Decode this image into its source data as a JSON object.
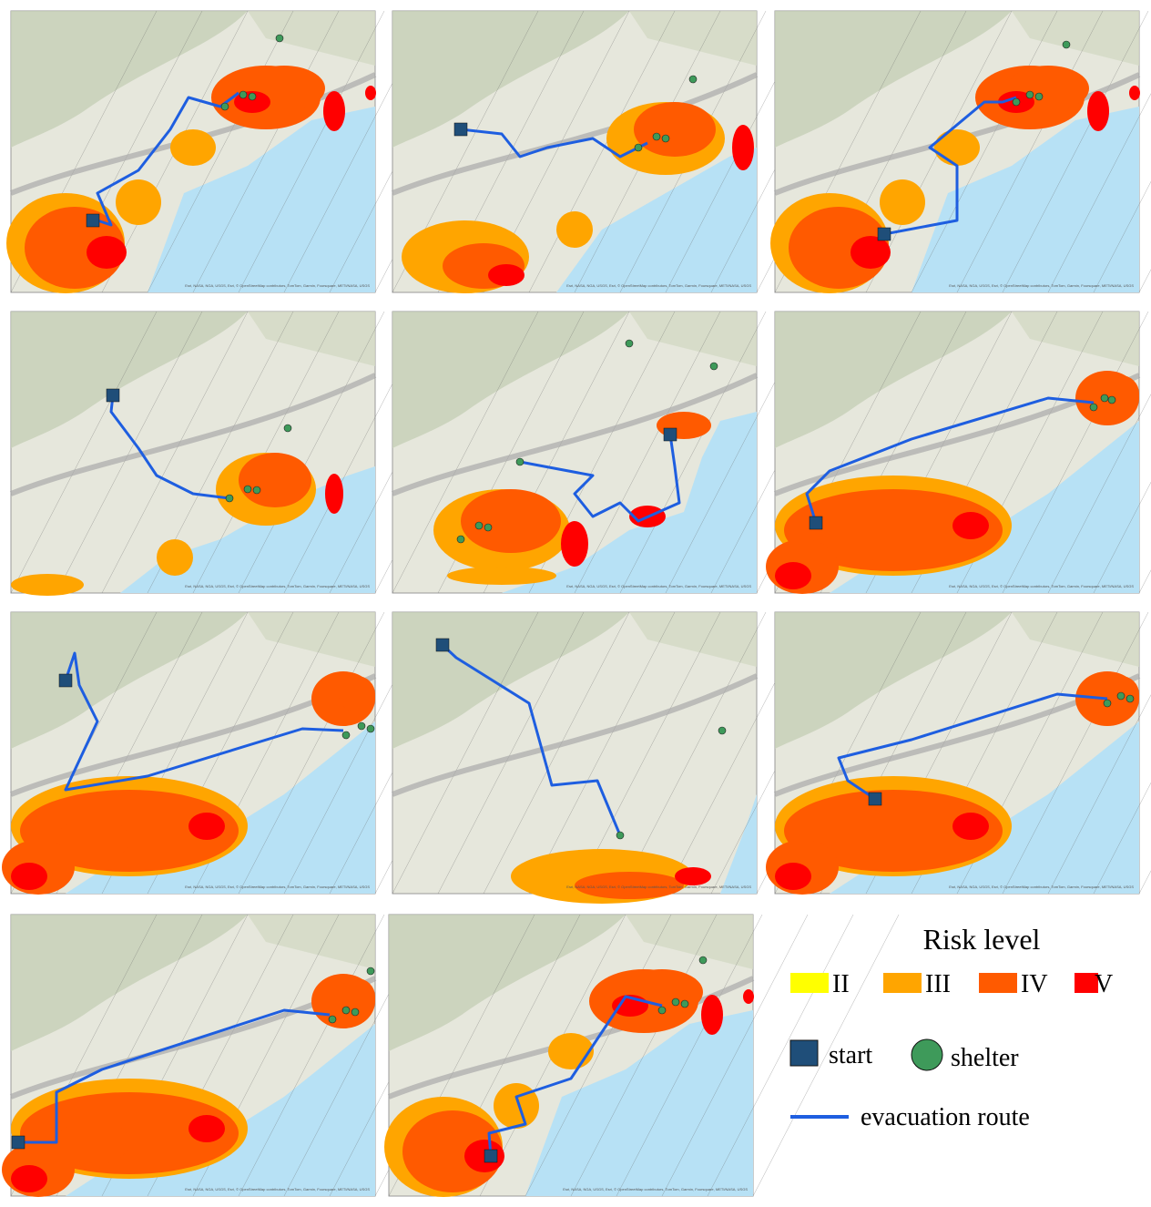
{
  "attribution": "Esri, NASA, NGA, USGS, Esri, © OpenStreetMap contributors, TomTom, Garmin, Foursquare, METI/NASA, USGS",
  "legend": {
    "title": "Risk level",
    "levels": [
      {
        "label": "II",
        "color": "#ffff00"
      },
      {
        "label": "III",
        "color": "#ffa500"
      },
      {
        "label": "IV",
        "color": "#ff5a00"
      },
      {
        "label": "V",
        "color": "#ff0000"
      }
    ],
    "start": {
      "label": "start",
      "color": "#1f4e79"
    },
    "shelter": {
      "label": "shelter",
      "color": "#3e9a5a"
    },
    "route": {
      "label": "evacuation route",
      "color": "#1e5ee0"
    }
  }
}
